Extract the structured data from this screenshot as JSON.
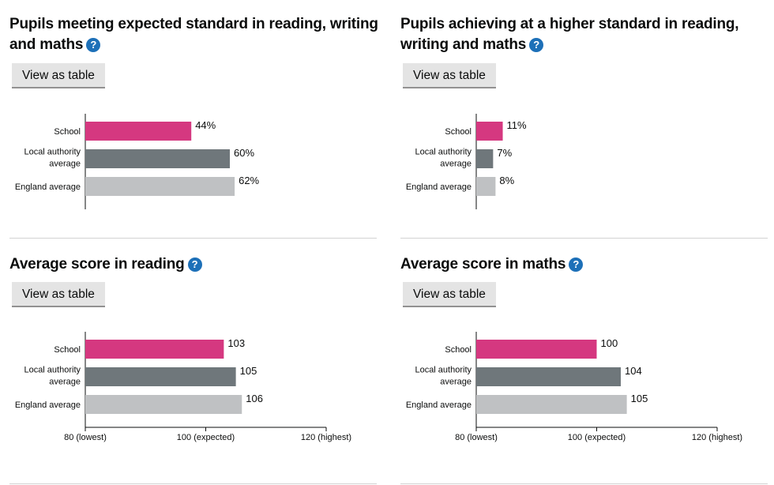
{
  "colors": {
    "school": "#d53880",
    "local": "#6f777b",
    "england": "#bfc1c3"
  },
  "view_table_label": "View as table",
  "help_icon_glyph": "?",
  "chart_data": [
    {
      "type": "bar",
      "title": "Pupils meeting expected standard in reading, writing and maths",
      "categories": [
        "School",
        "Local authority average",
        "England average"
      ],
      "category_lines": [
        [
          "School"
        ],
        [
          "Local authority",
          "average"
        ],
        [
          "England average"
        ]
      ],
      "values": [
        44,
        60,
        62
      ],
      "value_labels": [
        "44%",
        "60%",
        "62%"
      ],
      "xlim": [
        0,
        100
      ],
      "ticks": []
    },
    {
      "type": "bar",
      "title": "Pupils achieving at a higher standard in reading, writing and maths",
      "categories": [
        "School",
        "Local authority average",
        "England average"
      ],
      "category_lines": [
        [
          "School"
        ],
        [
          "Local authority",
          "average"
        ],
        [
          "England average"
        ]
      ],
      "values": [
        11,
        7,
        8
      ],
      "value_labels": [
        "11%",
        "7%",
        "8%"
      ],
      "xlim": [
        0,
        100
      ],
      "ticks": []
    },
    {
      "type": "bar",
      "title": "Average score in reading",
      "categories": [
        "School",
        "Local authority average",
        "England average"
      ],
      "category_lines": [
        [
          "School"
        ],
        [
          "Local authority",
          "average"
        ],
        [
          "England average"
        ]
      ],
      "values": [
        103,
        105,
        106
      ],
      "value_labels": [
        "103",
        "105",
        "106"
      ],
      "xlim": [
        80,
        120
      ],
      "ticks": [
        {
          "value": 80,
          "label": "80 (lowest)"
        },
        {
          "value": 100,
          "label": "100 (expected)"
        },
        {
          "value": 120,
          "label": "120 (highest)"
        }
      ]
    },
    {
      "type": "bar",
      "title": "Average score in maths",
      "categories": [
        "School",
        "Local authority average",
        "England average"
      ],
      "category_lines": [
        [
          "School"
        ],
        [
          "Local authority",
          "average"
        ],
        [
          "England average"
        ]
      ],
      "values": [
        100,
        104,
        105
      ],
      "value_labels": [
        "100",
        "104",
        "105"
      ],
      "xlim": [
        80,
        120
      ],
      "ticks": [
        {
          "value": 80,
          "label": "80 (lowest)"
        },
        {
          "value": 100,
          "label": "100 (expected)"
        },
        {
          "value": 120,
          "label": "120 (highest)"
        }
      ]
    }
  ]
}
